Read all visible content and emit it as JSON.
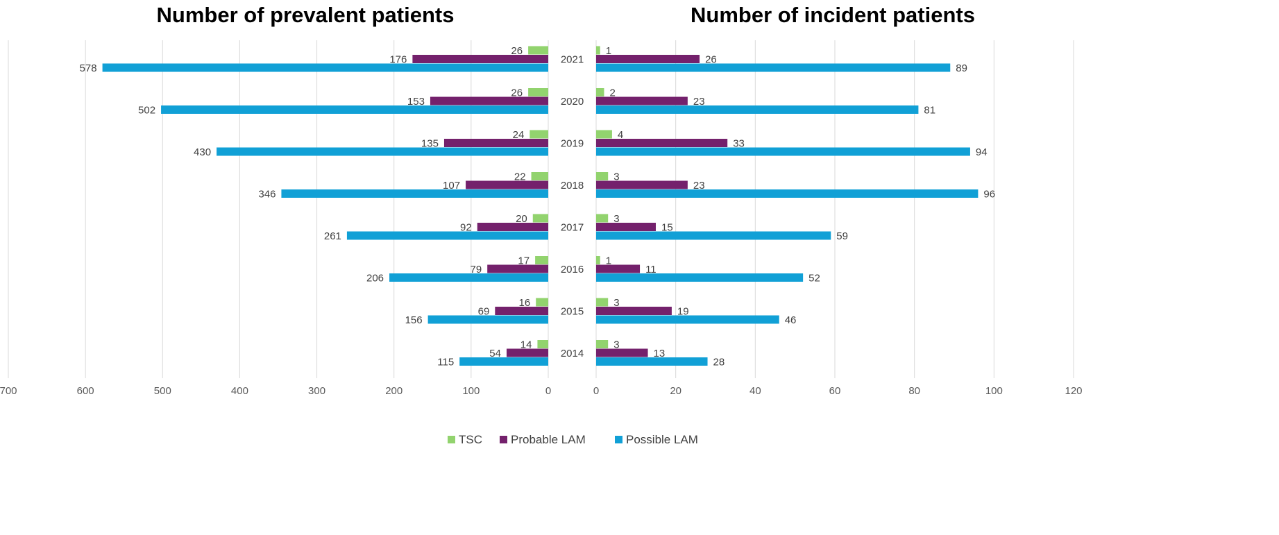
{
  "chart_data": {
    "type": "bar",
    "orientation": "horizontal",
    "layout": "butterfly",
    "categories": [
      "2021",
      "2020",
      "2019",
      "2018",
      "2017",
      "2016",
      "2015",
      "2014"
    ],
    "colors": {
      "TSC": "#92d36e",
      "Probable LAM": "#74216c",
      "Possible LAM": "#11a0d6"
    },
    "legend": {
      "position": "bottom",
      "entries": [
        "TSC",
        "Probable LAM",
        "Possible LAM"
      ]
    },
    "panels": [
      {
        "id": "prevalent",
        "title": "Number of prevalent patients",
        "direction": "left",
        "xlim": [
          0,
          700
        ],
        "ticks": [
          700,
          600,
          500,
          400,
          300,
          200,
          100,
          0
        ],
        "grid": true,
        "series": [
          {
            "name": "TSC",
            "values": [
              26,
              26,
              24,
              22,
              20,
              17,
              16,
              14
            ]
          },
          {
            "name": "Probable LAM",
            "values": [
              176,
              153,
              135,
              107,
              92,
              79,
              69,
              54
            ]
          },
          {
            "name": "Possible LAM",
            "values": [
              578,
              502,
              430,
              346,
              261,
              206,
              156,
              115
            ]
          }
        ]
      },
      {
        "id": "incident",
        "title": "Number of incident patients",
        "direction": "right",
        "xlim": [
          0,
          120
        ],
        "ticks": [
          0,
          20,
          40,
          60,
          80,
          100,
          120
        ],
        "grid": true,
        "series": [
          {
            "name": "TSC",
            "values": [
              1,
              2,
              4,
              3,
              3,
              1,
              3,
              3
            ]
          },
          {
            "name": "Probable LAM",
            "values": [
              26,
              23,
              33,
              23,
              15,
              11,
              19,
              13
            ]
          },
          {
            "name": "Possible LAM",
            "values": [
              89,
              81,
              94,
              96,
              59,
              52,
              46,
              28
            ]
          }
        ]
      }
    ]
  }
}
